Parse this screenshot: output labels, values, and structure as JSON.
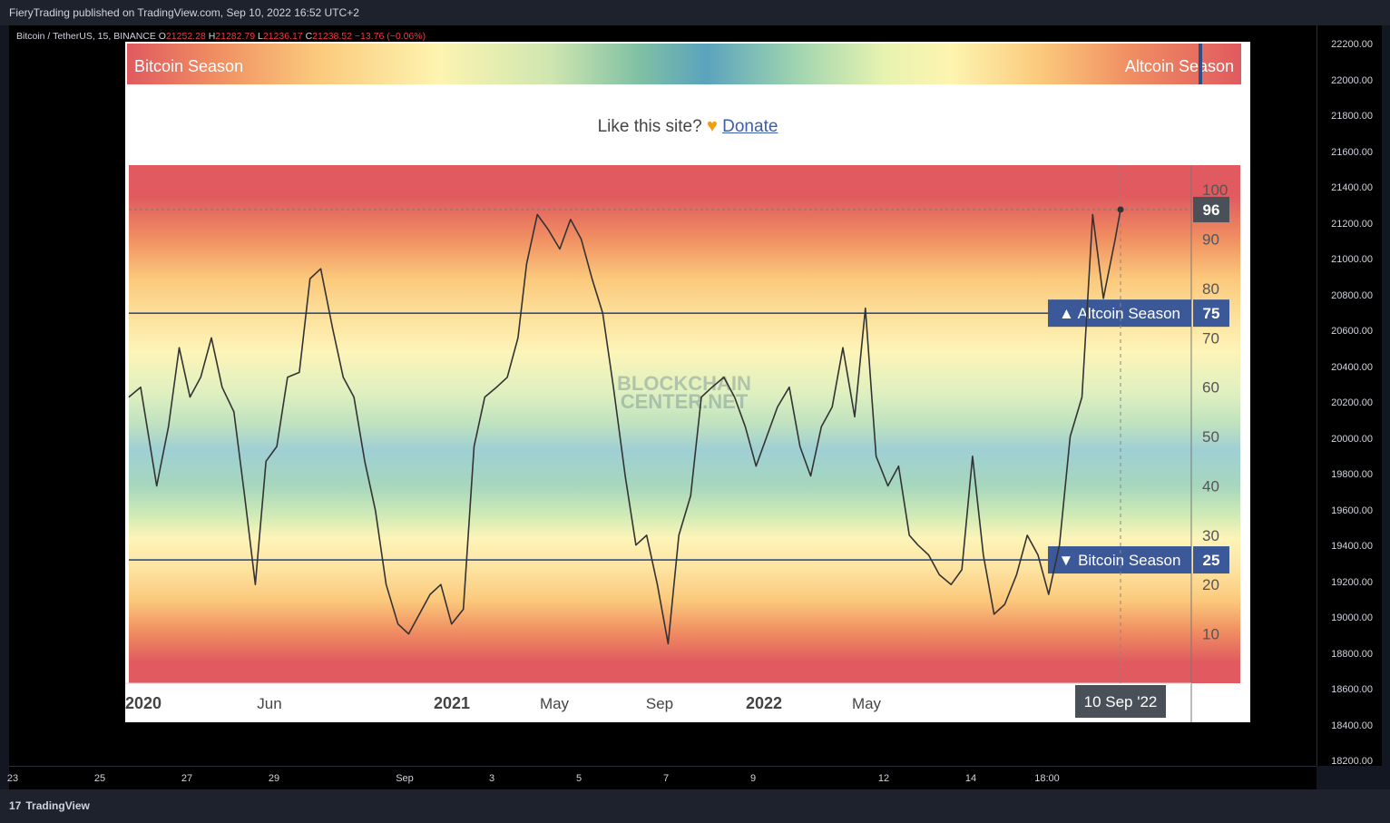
{
  "header": {
    "publisher_text": "FieryTrading published on TradingView.com, Sep 10, 2022 16:52 UTC+2"
  },
  "symbol_legend": {
    "name": "Bitcoin / TetherUS, 15, BINANCE",
    "o_label": "O",
    "o_value": "21252.28",
    "h_label": "H",
    "h_value": "21282.79",
    "l_label": "L",
    "l_value": "21236.17",
    "c_label": "C",
    "c_value": "21238.52",
    "change": "−13.76 (−0.06%)"
  },
  "price_axis": {
    "ticks": [
      "22200.00",
      "22000.00",
      "21800.00",
      "21600.00",
      "21400.00",
      "21200.00",
      "21000.00",
      "20800.00",
      "20600.00",
      "20400.00",
      "20200.00",
      "20000.00",
      "19800.00",
      "19600.00",
      "19400.00",
      "19200.00",
      "19000.00",
      "18800.00",
      "18600.00",
      "18400.00",
      "18200.00"
    ]
  },
  "time_axis": {
    "ticks": [
      "23",
      "25",
      "27",
      "29",
      "Sep",
      "3",
      "5",
      "7",
      "9",
      "12",
      "14",
      "18:00"
    ]
  },
  "footer": {
    "brand": "TradingView",
    "logo_mark": "17"
  },
  "embed": {
    "season_bar": {
      "left_label": "Bitcoin Season",
      "right_label": "Altcoin Season",
      "marker_value": 96
    },
    "donate": {
      "prefix": "Like this site?",
      "heart": "♥",
      "link": "Donate"
    },
    "watermark_line1": "BLOCKCHAIN",
    "watermark_line2": "CENTER.NET"
  },
  "chart_data": {
    "type": "line",
    "title": "",
    "ylim": [
      0,
      105
    ],
    "y_ticks": [
      10,
      20,
      30,
      40,
      50,
      60,
      70,
      80,
      90,
      100
    ],
    "x_ticks": [
      "2020",
      "Jun",
      "2021",
      "May",
      "Sep",
      "2022",
      "May"
    ],
    "x_range": [
      "2020-02-28",
      "2022-11-15"
    ],
    "current": {
      "date": "2022-09-10",
      "value": 96,
      "date_label": "10 Sep '22"
    },
    "thresholds": [
      {
        "value": 75,
        "label": "▲ Altcoin Season",
        "value_label": "75"
      },
      {
        "value": 25,
        "label": "▼ Bitcoin Season",
        "value_label": "25"
      }
    ],
    "colors": {
      "line": "#333333",
      "threshold": "#2f4f8a",
      "badge": "#3b5998",
      "price_badge": "#4a5058"
    },
    "series": [
      {
        "x": [
          "2020-02-28",
          "2020-03-10",
          "2020-03-25",
          "2020-04-05",
          "2020-04-15",
          "2020-04-25",
          "2020-05-05",
          "2020-05-15",
          "2020-05-25",
          "2020-06-05",
          "2020-06-15",
          "2020-06-25",
          "2020-07-05",
          "2020-07-15",
          "2020-07-25",
          "2020-08-05",
          "2020-08-15",
          "2020-08-25",
          "2020-09-05",
          "2020-09-15",
          "2020-09-25",
          "2020-10-05",
          "2020-10-15",
          "2020-10-25",
          "2020-11-05",
          "2020-11-15",
          "2020-11-25",
          "2020-12-05",
          "2020-12-15",
          "2020-12-25",
          "2021-01-05",
          "2021-01-15",
          "2021-01-25",
          "2021-02-05",
          "2021-02-15",
          "2021-02-25",
          "2021-03-05",
          "2021-03-15",
          "2021-03-25",
          "2021-04-05",
          "2021-04-15",
          "2021-04-25",
          "2021-05-05",
          "2021-05-15",
          "2021-05-25",
          "2021-06-05",
          "2021-06-15",
          "2021-06-25",
          "2021-07-05",
          "2021-07-15",
          "2021-07-25",
          "2021-08-05",
          "2021-08-15",
          "2021-08-25",
          "2021-09-05",
          "2021-09-15",
          "2021-09-25",
          "2021-10-05",
          "2021-10-15",
          "2021-10-25",
          "2021-11-05",
          "2021-11-15",
          "2021-11-25",
          "2021-12-05",
          "2021-12-15",
          "2021-12-25",
          "2022-01-05",
          "2022-01-15",
          "2022-01-25",
          "2022-02-05",
          "2022-02-15",
          "2022-02-25",
          "2022-03-05",
          "2022-03-15",
          "2022-03-25",
          "2022-04-05",
          "2022-04-15",
          "2022-04-25",
          "2022-05-05",
          "2022-05-15",
          "2022-05-25",
          "2022-06-05",
          "2022-06-15",
          "2022-06-25",
          "2022-07-05",
          "2022-07-15",
          "2022-07-25",
          "2022-08-05",
          "2022-08-15",
          "2022-08-25",
          "2022-09-05",
          "2022-09-10"
        ],
        "y": [
          58,
          60,
          40,
          52,
          68,
          58,
          62,
          70,
          60,
          55,
          38,
          20,
          45,
          48,
          62,
          63,
          82,
          84,
          72,
          62,
          58,
          45,
          35,
          20,
          12,
          10,
          14,
          18,
          20,
          12,
          15,
          48,
          58,
          60,
          62,
          70,
          85,
          95,
          92,
          88,
          94,
          90,
          82,
          75,
          60,
          42,
          28,
          30,
          20,
          8,
          30,
          38,
          58,
          60,
          62,
          58,
          52,
          44,
          50,
          56,
          60,
          48,
          42,
          52,
          56,
          68,
          54,
          76,
          46,
          40,
          44,
          30,
          28,
          26,
          22,
          20,
          23,
          46,
          26,
          14,
          16,
          22,
          30,
          26,
          18,
          28,
          50,
          58,
          95,
          78,
          90,
          96
        ]
      }
    ]
  }
}
